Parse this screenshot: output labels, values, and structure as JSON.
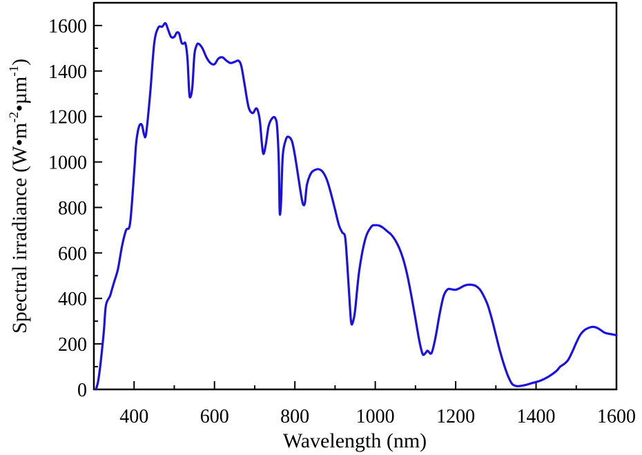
{
  "chart_data": {
    "type": "line",
    "title": "",
    "xlabel": "Wavelength (nm)",
    "ylabel": {
      "main": "Spectral irradiance (W",
      "bullet1": "•",
      "m": "m",
      "sup1": "-2",
      "bullet2": "•",
      "um": "µm",
      "sup2": "-1",
      "close": ")"
    },
    "xlim": [
      300,
      1600
    ],
    "ylim": [
      0,
      1700
    ],
    "xticks": [
      "400",
      "600",
      "800",
      "1000",
      "1200",
      "1400",
      "1600"
    ],
    "yticks": [
      "0",
      "200",
      "400",
      "600",
      "800",
      "1000",
      "1200",
      "1400",
      "1600"
    ],
    "grid": false,
    "legend": "none",
    "series": [
      {
        "color": "#1a10e6",
        "points": [
          [
            305,
            0
          ],
          [
            310,
            30
          ],
          [
            315,
            90
          ],
          [
            320,
            170
          ],
          [
            325,
            260
          ],
          [
            330,
            370
          ],
          [
            340,
            410
          ],
          [
            345,
            440
          ],
          [
            350,
            470
          ],
          [
            360,
            530
          ],
          [
            370,
            630
          ],
          [
            380,
            700
          ],
          [
            390,
            730
          ],
          [
            400,
            950
          ],
          [
            405,
            1080
          ],
          [
            410,
            1140
          ],
          [
            415,
            1165
          ],
          [
            420,
            1160
          ],
          [
            425,
            1120
          ],
          [
            430,
            1125
          ],
          [
            440,
            1300
          ],
          [
            450,
            1520
          ],
          [
            460,
            1590
          ],
          [
            470,
            1595
          ],
          [
            478,
            1610
          ],
          [
            485,
            1580
          ],
          [
            492,
            1550
          ],
          [
            500,
            1550
          ],
          [
            506,
            1568
          ],
          [
            512,
            1565
          ],
          [
            518,
            1525
          ],
          [
            523,
            1520
          ],
          [
            528,
            1520
          ],
          [
            533,
            1450
          ],
          [
            537,
            1310
          ],
          [
            540,
            1285
          ],
          [
            545,
            1330
          ],
          [
            550,
            1470
          ],
          [
            555,
            1510
          ],
          [
            560,
            1520
          ],
          [
            570,
            1500
          ],
          [
            580,
            1460
          ],
          [
            590,
            1435
          ],
          [
            600,
            1430
          ],
          [
            610,
            1455
          ],
          [
            620,
            1460
          ],
          [
            630,
            1445
          ],
          [
            640,
            1435
          ],
          [
            650,
            1440
          ],
          [
            660,
            1445
          ],
          [
            667,
            1420
          ],
          [
            675,
            1340
          ],
          [
            685,
            1240
          ],
          [
            695,
            1215
          ],
          [
            703,
            1235
          ],
          [
            708,
            1225
          ],
          [
            713,
            1180
          ],
          [
            718,
            1080
          ],
          [
            722,
            1035
          ],
          [
            728,
            1080
          ],
          [
            735,
            1160
          ],
          [
            745,
            1195
          ],
          [
            752,
            1190
          ],
          [
            756,
            1150
          ],
          [
            760,
            1000
          ],
          [
            762,
            790
          ],
          [
            764,
            780
          ],
          [
            766,
            840
          ],
          [
            770,
            1030
          ],
          [
            778,
            1100
          ],
          [
            785,
            1110
          ],
          [
            793,
            1090
          ],
          [
            800,
            1030
          ],
          [
            808,
            940
          ],
          [
            815,
            860
          ],
          [
            820,
            815
          ],
          [
            825,
            820
          ],
          [
            830,
            900
          ],
          [
            840,
            950
          ],
          [
            850,
            965
          ],
          [
            860,
            968
          ],
          [
            870,
            955
          ],
          [
            880,
            920
          ],
          [
            890,
            860
          ],
          [
            900,
            790
          ],
          [
            910,
            720
          ],
          [
            918,
            690
          ],
          [
            925,
            670
          ],
          [
            930,
            560
          ],
          [
            935,
            420
          ],
          [
            940,
            295
          ],
          [
            945,
            300
          ],
          [
            950,
            350
          ],
          [
            960,
            520
          ],
          [
            975,
            660
          ],
          [
            990,
            715
          ],
          [
            1000,
            722
          ],
          [
            1010,
            720
          ],
          [
            1020,
            710
          ],
          [
            1030,
            695
          ],
          [
            1040,
            680
          ],
          [
            1050,
            655
          ],
          [
            1060,
            620
          ],
          [
            1070,
            570
          ],
          [
            1080,
            500
          ],
          [
            1090,
            410
          ],
          [
            1100,
            310
          ],
          [
            1110,
            210
          ],
          [
            1118,
            155
          ],
          [
            1125,
            160
          ],
          [
            1130,
            170
          ],
          [
            1140,
            160
          ],
          [
            1150,
            230
          ],
          [
            1160,
            330
          ],
          [
            1170,
            410
          ],
          [
            1180,
            440
          ],
          [
            1190,
            440
          ],
          [
            1200,
            438
          ],
          [
            1210,
            445
          ],
          [
            1220,
            455
          ],
          [
            1230,
            460
          ],
          [
            1240,
            460
          ],
          [
            1250,
            455
          ],
          [
            1260,
            440
          ],
          [
            1270,
            410
          ],
          [
            1280,
            370
          ],
          [
            1290,
            310
          ],
          [
            1300,
            240
          ],
          [
            1310,
            170
          ],
          [
            1320,
            110
          ],
          [
            1330,
            60
          ],
          [
            1340,
            25
          ],
          [
            1350,
            15
          ],
          [
            1360,
            15
          ],
          [
            1375,
            20
          ],
          [
            1390,
            28
          ],
          [
            1410,
            38
          ],
          [
            1430,
            55
          ],
          [
            1450,
            80
          ],
          [
            1460,
            100
          ],
          [
            1470,
            112
          ],
          [
            1480,
            130
          ],
          [
            1490,
            165
          ],
          [
            1500,
            205
          ],
          [
            1510,
            240
          ],
          [
            1520,
            260
          ],
          [
            1530,
            270
          ],
          [
            1540,
            275
          ],
          [
            1550,
            272
          ],
          [
            1560,
            262
          ],
          [
            1570,
            250
          ],
          [
            1580,
            245
          ],
          [
            1590,
            242
          ],
          [
            1600,
            238
          ]
        ]
      }
    ]
  }
}
